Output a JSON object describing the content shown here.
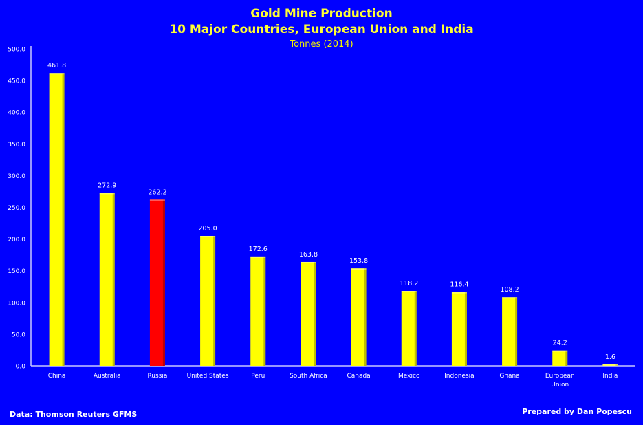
{
  "chart_data": {
    "type": "bar",
    "title": "Gold Mine Production",
    "subtitle": "10 Major Countries, European Union and India",
    "unit_label": "Tonnes (2014)",
    "xlabel": "",
    "ylabel": "",
    "ylim": [
      0,
      500
    ],
    "yticks": [
      "0.0",
      "50.0",
      "100.0",
      "150.0",
      "200.0",
      "250.0",
      "300.0",
      "350.0",
      "400.0",
      "450.0",
      "500.0"
    ],
    "grid": false,
    "categories": [
      "China",
      "Australia",
      "Russia",
      "United States",
      "Peru",
      "South Africa",
      "Canada",
      "Mexico",
      "Indonesia",
      "Ghana",
      "European Union",
      "India"
    ],
    "category_lines": [
      [
        "China"
      ],
      [
        "Australia"
      ],
      [
        "Russia"
      ],
      [
        "United States"
      ],
      [
        "Peru"
      ],
      [
        "South Africa"
      ],
      [
        "Canada"
      ],
      [
        "Mexico"
      ],
      [
        "Indonesia"
      ],
      [
        "Ghana"
      ],
      [
        "European",
        "Union"
      ],
      [
        "India"
      ]
    ],
    "values": [
      461.8,
      272.9,
      262.2,
      205.0,
      172.6,
      163.8,
      153.8,
      118.2,
      116.4,
      108.2,
      24.2,
      1.6
    ],
    "value_labels": [
      "461.8",
      "272.9",
      "262.2",
      "205.0",
      "172.6",
      "163.8",
      "153.8",
      "118.2",
      "116.4",
      "108.2",
      "24.2",
      "1.6"
    ],
    "highlight": "Russia",
    "colors": {
      "background": "#0000ff",
      "bar": "#ffff00",
      "highlight_bar": "#ff0000",
      "axis": "#c8c8ff",
      "text": "#ffffff",
      "title": "#ffff33"
    }
  },
  "footer": {
    "source": "Data: Thomson Reuters GFMS",
    "prepared_by": "Prepared by Dan Popescu"
  }
}
